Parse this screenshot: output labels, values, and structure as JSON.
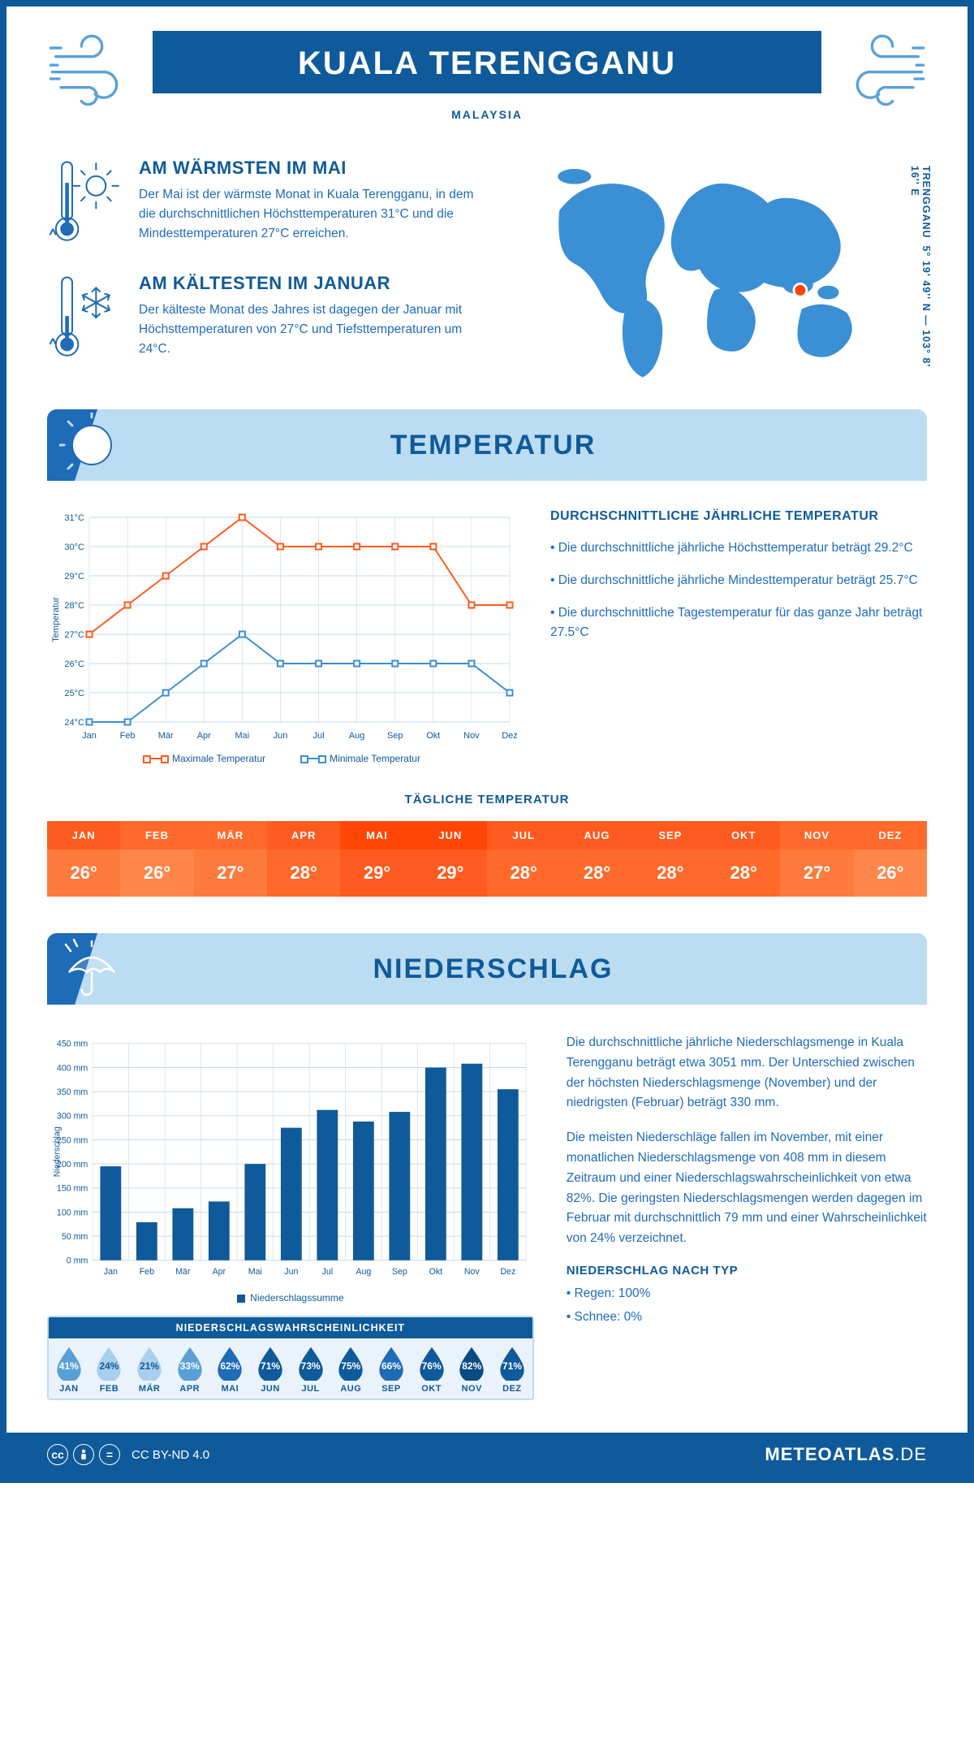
{
  "header": {
    "city": "KUALA TERENGGANU",
    "country": "MALAYSIA"
  },
  "coords": {
    "text": "5° 19' 49'' N — 103° 8' 16'' E",
    "place_label": "TRENGGANU"
  },
  "facts": {
    "warmest": {
      "title": "AM WÄRMSTEN IM MAI",
      "body": "Der Mai ist der wärmste Monat in Kuala Terengganu, in dem die durchschnittlichen Höchsttemperaturen 31°C und die Mindesttemperaturen 27°C erreichen."
    },
    "coldest": {
      "title": "AM KÄLTESTEN IM JANUAR",
      "body": "Der kälteste Monat des Jahres ist dagegen der Januar mit Höchsttemperaturen von 27°C und Tiefsttemperaturen um 24°C."
    }
  },
  "temperature_section": {
    "title": "TEMPERATUR",
    "info_heading": "DURCHSCHNITTLICHE JÄHRLICHE TEMPERATUR",
    "bullets": [
      "• Die durchschnittliche jährliche Höchsttemperatur beträgt 29.2°C",
      "• Die durchschnittliche jährliche Mindesttemperatur beträgt 25.7°C",
      "• Die durchschnittliche Tagestemperatur für das ganze Jahr beträgt 27.5°C"
    ],
    "chart": {
      "months": [
        "Jan",
        "Feb",
        "Mär",
        "Apr",
        "Mai",
        "Jun",
        "Jul",
        "Aug",
        "Sep",
        "Okt",
        "Nov",
        "Dez"
      ],
      "ylabel": "Temperatur",
      "ylim": [
        24,
        31
      ],
      "ytick_step": 1,
      "max_series": [
        27,
        28,
        29,
        30,
        31,
        30,
        30,
        30,
        30,
        30,
        28,
        28
      ],
      "min_series": [
        24,
        24,
        25,
        26,
        27,
        26,
        26,
        26,
        26,
        26,
        26,
        25
      ],
      "max_color": "#ff5a1f",
      "min_color": "#3b8fd4",
      "grid_color": "#c9d8e8",
      "axis_color": "#0f5a9a",
      "legend_max": "Maximale Temperatur",
      "legend_min": "Minimale Temperatur"
    },
    "daily_title": "TÄGLICHE TEMPERATUR",
    "daily": {
      "months": [
        "JAN",
        "FEB",
        "MÄR",
        "APR",
        "MAI",
        "JUN",
        "JUL",
        "AUG",
        "SEP",
        "OKT",
        "NOV",
        "DEZ"
      ],
      "values": [
        "26°",
        "26°",
        "27°",
        "28°",
        "29°",
        "29°",
        "28°",
        "28°",
        "28°",
        "28°",
        "27°",
        "26°"
      ],
      "head_colors": [
        "#ff5a1f",
        "#ff6a2b",
        "#ff6a2b",
        "#ff5a1f",
        "#ff4606",
        "#ff4606",
        "#ff5a1f",
        "#ff5a1f",
        "#ff5a1f",
        "#ff5a1f",
        "#ff6a2b",
        "#ff6a2b"
      ],
      "val_colors": [
        "#ff7a3d",
        "#ff864b",
        "#ff7a3d",
        "#ff6a2b",
        "#ff5a1f",
        "#ff5a1f",
        "#ff6a2b",
        "#ff6a2b",
        "#ff6a2b",
        "#ff6a2b",
        "#ff7a3d",
        "#ff864b"
      ]
    }
  },
  "precip_section": {
    "title": "NIEDERSCHLAG",
    "paragraphs": [
      "Die durchschnittliche jährliche Niederschlagsmenge in Kuala Terengganu beträgt etwa 3051 mm. Der Unterschied zwischen der höchsten Niederschlagsmenge (November) und der niedrigsten (Februar) beträgt 330 mm.",
      "Die meisten Niederschläge fallen im November, mit einer monatlichen Niederschlagsmenge von 408 mm in diesem Zeitraum und einer Niederschlagswahrscheinlichkeit von etwa 82%. Die geringsten Niederschlagsmengen werden dagegen im Februar mit durchschnittlich 79 mm und einer Wahrscheinlichkeit von 24% verzeichnet."
    ],
    "type_heading": "NIEDERSCHLAG NACH TYP",
    "type_bullets": [
      "• Regen: 100%",
      "• Schnee: 0%"
    ],
    "chart": {
      "months": [
        "Jan",
        "Feb",
        "Mär",
        "Apr",
        "Mai",
        "Jun",
        "Jul",
        "Aug",
        "Sep",
        "Okt",
        "Nov",
        "Dez"
      ],
      "values": [
        195,
        79,
        108,
        122,
        200,
        275,
        312,
        288,
        308,
        400,
        408,
        355
      ],
      "ylabel": "Niederschlag",
      "ylim": [
        0,
        450
      ],
      "ytick_step": 50,
      "bar_color": "#0f5a9a",
      "grid_color": "#c9d8e8",
      "axis_color": "#0f5a9a",
      "legend": "Niederschlagssumme"
    },
    "probability": {
      "title": "NIEDERSCHLAGSWAHRSCHEINLICHKEIT",
      "months": [
        "JAN",
        "FEB",
        "MÄR",
        "APR",
        "MAI",
        "JUN",
        "JUL",
        "AUG",
        "SEP",
        "OKT",
        "NOV",
        "DEZ"
      ],
      "pct": [
        "41%",
        "24%",
        "21%",
        "33%",
        "62%",
        "71%",
        "73%",
        "75%",
        "66%",
        "76%",
        "82%",
        "71%"
      ],
      "colors": [
        "#5aa0d8",
        "#a9cfee",
        "#a9cfee",
        "#5aa0d8",
        "#1e6bb8",
        "#0f5a9a",
        "#0f5a9a",
        "#0f5a9a",
        "#1e6bb8",
        "#0f5a9a",
        "#0b4a82",
        "#0f5a9a"
      ],
      "text_colors": [
        "#fff",
        "#0f5a9a",
        "#0f5a9a",
        "#fff",
        "#fff",
        "#fff",
        "#fff",
        "#fff",
        "#fff",
        "#fff",
        "#fff",
        "#fff"
      ]
    }
  },
  "footer": {
    "license": "CC BY-ND 4.0",
    "brand": "METEOATLAS",
    "brand_suffix": ".DE"
  }
}
